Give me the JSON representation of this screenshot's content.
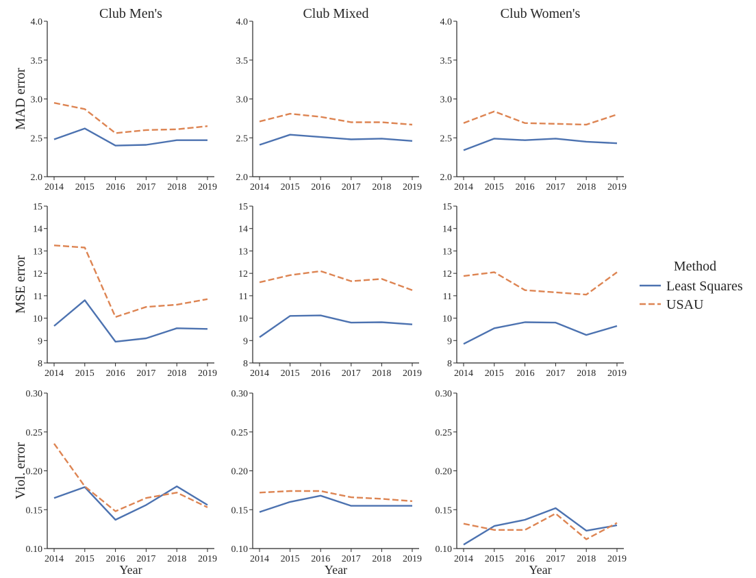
{
  "chart_data": {
    "type": "line",
    "layout": "3x3 facet grid",
    "columns": [
      "Club Men's",
      "Club Mixed",
      "Club Women's"
    ],
    "xlabel": "Year",
    "x": [
      2014,
      2015,
      2016,
      2017,
      2018,
      2019
    ],
    "legend": {
      "title": "Method",
      "placement": "right",
      "entries": [
        {
          "name": "Least Squares",
          "color": "#4c72b0",
          "style": "solid"
        },
        {
          "name": "USAU",
          "color": "#dd8452",
          "style": "dashed"
        }
      ]
    },
    "rows": [
      {
        "ylabel": "MAD error",
        "ylim": [
          2.0,
          4.0
        ],
        "yticks": [
          "2.0",
          "2.5",
          "3.0",
          "3.5",
          "4.0"
        ],
        "panels": [
          {
            "column": "Club Men's",
            "series": [
              {
                "name": "Least Squares",
                "values": [
                  2.48,
                  2.62,
                  2.4,
                  2.41,
                  2.47,
                  2.47
                ]
              },
              {
                "name": "USAU",
                "values": [
                  2.95,
                  2.87,
                  2.56,
                  2.6,
                  2.61,
                  2.65
                ]
              }
            ]
          },
          {
            "column": "Club Mixed",
            "series": [
              {
                "name": "Least Squares",
                "values": [
                  2.41,
                  2.54,
                  2.51,
                  2.48,
                  2.49,
                  2.46
                ]
              },
              {
                "name": "USAU",
                "values": [
                  2.71,
                  2.81,
                  2.77,
                  2.7,
                  2.7,
                  2.67
                ]
              }
            ]
          },
          {
            "column": "Club Women's",
            "series": [
              {
                "name": "Least Squares",
                "values": [
                  2.34,
                  2.49,
                  2.47,
                  2.49,
                  2.45,
                  2.43
                ]
              },
              {
                "name": "USAU",
                "values": [
                  2.69,
                  2.84,
                  2.69,
                  2.68,
                  2.67,
                  2.8
                ]
              }
            ]
          }
        ]
      },
      {
        "ylabel": "MSE error",
        "ylim": [
          8,
          15
        ],
        "yticks": [
          "8",
          "9",
          "10",
          "11",
          "12",
          "13",
          "14",
          "15"
        ],
        "panels": [
          {
            "column": "Club Men's",
            "series": [
              {
                "name": "Least Squares",
                "values": [
                  9.65,
                  10.8,
                  8.95,
                  9.1,
                  9.55,
                  9.52
                ]
              },
              {
                "name": "USAU",
                "values": [
                  13.25,
                  13.15,
                  10.05,
                  10.5,
                  10.6,
                  10.85
                ]
              }
            ]
          },
          {
            "column": "Club Mixed",
            "series": [
              {
                "name": "Least Squares",
                "values": [
                  9.15,
                  10.1,
                  10.12,
                  9.8,
                  9.82,
                  9.72
                ]
              },
              {
                "name": "USAU",
                "values": [
                  11.6,
                  11.92,
                  12.1,
                  11.65,
                  11.75,
                  11.25
                ]
              }
            ]
          },
          {
            "column": "Club Women's",
            "series": [
              {
                "name": "Least Squares",
                "values": [
                  8.85,
                  9.55,
                  9.82,
                  9.8,
                  9.25,
                  9.65
                ]
              },
              {
                "name": "USAU",
                "values": [
                  11.88,
                  12.05,
                  11.25,
                  11.15,
                  11.05,
                  12.05
                ]
              }
            ]
          }
        ]
      },
      {
        "ylabel": "Viol. error",
        "ylim": [
          0.1,
          0.3
        ],
        "yticks": [
          "0.10",
          "0.15",
          "0.20",
          "0.25",
          "0.30"
        ],
        "panels": [
          {
            "column": "Club Men's",
            "series": [
              {
                "name": "Least Squares",
                "values": [
                  0.165,
                  0.179,
                  0.137,
                  0.156,
                  0.18,
                  0.156
                ]
              },
              {
                "name": "USAU",
                "values": [
                  0.235,
                  0.18,
                  0.148,
                  0.165,
                  0.172,
                  0.153
                ]
              }
            ]
          },
          {
            "column": "Club Mixed",
            "series": [
              {
                "name": "Least Squares",
                "values": [
                  0.147,
                  0.16,
                  0.168,
                  0.155,
                  0.155,
                  0.155
                ]
              },
              {
                "name": "USAU",
                "values": [
                  0.172,
                  0.174,
                  0.174,
                  0.166,
                  0.164,
                  0.161
                ]
              }
            ]
          },
          {
            "column": "Club Women's",
            "series": [
              {
                "name": "Least Squares",
                "values": [
                  0.105,
                  0.129,
                  0.137,
                  0.152,
                  0.123,
                  0.13
                ]
              },
              {
                "name": "USAU",
                "values": [
                  0.132,
                  0.124,
                  0.124,
                  0.145,
                  0.112,
                  0.133
                ]
              }
            ]
          }
        ]
      }
    ]
  }
}
